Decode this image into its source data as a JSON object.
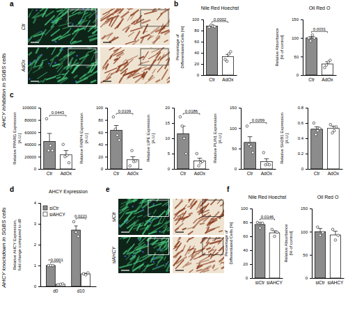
{
  "side_labels": [
    "AHCY inhibition in SGBS cells",
    "AHCY knockdown in SGBS cells"
  ],
  "panel_labels": [
    "a",
    "b",
    "c",
    "d",
    "e",
    "f"
  ],
  "image_labels": {
    "a": [
      "Ctr",
      "AdOx"
    ],
    "e": [
      "siCtr",
      "siAHCY"
    ]
  },
  "chart_data": [
    {
      "type": "bar",
      "title": "Nile Red Hoechst",
      "y_label": [
        "Percentage of",
        "Differentiated Cells [%]"
      ],
      "categories": [
        "Ctr",
        "AdOx"
      ],
      "values": [
        88,
        33
      ],
      "errors": [
        2,
        4
      ],
      "points": [
        [
          86,
          90,
          88,
          87
        ],
        [
          28,
          25,
          38,
          42
        ]
      ],
      "colors": [
        "#8c8c8c",
        "#ffffff"
      ],
      "ylim": [
        0,
        100
      ],
      "yticks": [
        0,
        20,
        40,
        60,
        80,
        100
      ],
      "p_values": [
        "0.0002"
      ]
    },
    {
      "type": "bar",
      "title": "Oil Red O",
      "y_label": [
        "Relative Absorbance",
        "[% of control]"
      ],
      "categories": [
        "Ctr",
        "AdOx"
      ],
      "values": [
        100,
        30
      ],
      "errors": [
        4,
        6
      ],
      "points": [
        [
          100,
          92,
          108,
          100
        ],
        [
          20,
          27,
          35,
          40
        ]
      ],
      "colors": [
        "#8c8c8c",
        "#ffffff"
      ],
      "ylim": [
        0,
        150
      ],
      "yticks": [
        0,
        50,
        100,
        150
      ],
      "p_values": [
        "0.0031"
      ]
    },
    {
      "type": "bar",
      "y_label": [
        "Relative PPARG Expression",
        "[A.U.]"
      ],
      "categories": [
        "Ctr",
        "AdOx"
      ],
      "values": [
        45000,
        23000
      ],
      "errors": [
        13000,
        7000
      ],
      "points": [
        [
          82000,
          30000,
          38000,
          30000
        ],
        [
          40000,
          20000,
          22000,
          10000
        ]
      ],
      "colors": [
        "#8c8c8c",
        "#ffffff"
      ],
      "ylim": [
        0,
        100000
      ],
      "yticks": [
        0,
        20000,
        40000,
        60000,
        80000,
        100000
      ],
      "p_values": [
        "0.0443"
      ]
    },
    {
      "type": "bar",
      "y_label": [
        "Relative FABP4 Expression",
        "[A.U.]"
      ],
      "categories": [
        "Ctr",
        "AdOx"
      ],
      "values": [
        63,
        15
      ],
      "errors": [
        8,
        5
      ],
      "points": [
        [
          85,
          65,
          55,
          47
        ],
        [
          5,
          30,
          12,
          13
        ]
      ],
      "colors": [
        "#8c8c8c",
        "#ffffff"
      ],
      "ylim": [
        0,
        100
      ],
      "yticks": [
        0,
        20,
        40,
        60,
        80,
        100
      ],
      "p_values": [
        "0.0109"
      ]
    },
    {
      "type": "bar",
      "y_label": [
        "Relative LIPE Expression",
        "[A.U.]"
      ],
      "categories": [
        "Ctr",
        "AdOx"
      ],
      "values": [
        11.5,
        2.6
      ],
      "errors": [
        2.5,
        0.9
      ],
      "points": [
        [
          17,
          14,
          10,
          5
        ],
        [
          5,
          1,
          2,
          2.5
        ]
      ],
      "colors": [
        "#8c8c8c",
        "#ffffff"
      ],
      "ylim": [
        0,
        20
      ],
      "yticks": [
        0,
        5,
        10,
        15,
        20
      ],
      "p_values": [
        "0.0186"
      ]
    },
    {
      "type": "bar",
      "y_label": [
        "Relative PLIN1 Expression",
        "[A.U.]"
      ],
      "categories": [
        "Ctr",
        "AdOx"
      ],
      "values": [
        65,
        18
      ],
      "errors": [
        14,
        7
      ],
      "points": [
        [
          105,
          60,
          55,
          40
        ],
        [
          40,
          10,
          12,
          10
        ]
      ],
      "colors": [
        "#8c8c8c",
        "#ffffff"
      ],
      "ylim": [
        0,
        150
      ],
      "yticks": [
        0,
        50,
        100,
        150
      ],
      "p_values": [
        "0.0269"
      ]
    },
    {
      "type": "bar",
      "y_label": [
        "Relative SH2B1 Expression",
        "[A.U.]"
      ],
      "categories": [
        "Ctr",
        "AdOx"
      ],
      "values": [
        0.52,
        0.53
      ],
      "errors": [
        0.03,
        0.03
      ],
      "points": [
        [
          0.6,
          0.45,
          0.5,
          0.53
        ],
        [
          0.58,
          0.47,
          0.5,
          0.55
        ]
      ],
      "colors": [
        "#8c8c8c",
        "#ffffff"
      ],
      "ylim": [
        0,
        0.8
      ],
      "yticks": [
        0,
        0.2,
        0.4,
        0.6,
        0.8
      ]
    },
    {
      "type": "bar",
      "title": "AHCY Expression",
      "y_label": [
        "Relative AHCY Expression,",
        "fold change compared to d0"
      ],
      "categories": [
        "d0",
        "d10"
      ],
      "series": [
        {
          "name": "siCtr",
          "color": "#8c8c8c",
          "values": [
            1,
            2.7
          ],
          "errors": [
            0,
            0.2
          ],
          "points": [
            [
              1,
              1,
              1
            ],
            [
              3.1,
              2.6,
              2.4
            ]
          ]
        },
        {
          "name": "siAHCY",
          "color": "#ffffff",
          "values": [
            0.1,
            0.6
          ],
          "errors": [
            0.01,
            0.03
          ],
          "points": [
            [
              0.08,
              0.1,
              0.12
            ],
            [
              0.6,
              0.55,
              0.65
            ]
          ]
        }
      ],
      "ylim": [
        0,
        4
      ],
      "yticks": [
        0,
        1,
        2,
        3,
        4
      ],
      "legend": "top-left",
      "p_values": [
        "<0.0001",
        "0.0221"
      ]
    },
    {
      "type": "bar",
      "title": "Nile Red Hoechst",
      "y_label": [
        "Percentage of",
        "Differentiated Cells [%]"
      ],
      "categories": [
        "siCtr",
        "siAHCY"
      ],
      "values": [
        77,
        65
      ],
      "errors": [
        3,
        3
      ],
      "points": [
        [
          80,
          72,
          79
        ],
        [
          70,
          60,
          66
        ]
      ],
      "colors": [
        "#8c8c8c",
        "#ffffff"
      ],
      "ylim": [
        0,
        100
      ],
      "yticks": [
        0,
        20,
        40,
        60,
        80,
        100
      ],
      "p_values": [
        "0.0146"
      ]
    },
    {
      "type": "bar",
      "title": "Oil Red O",
      "y_label": [
        "Relative Absorbance",
        "[% of control]"
      ],
      "categories": [
        "siCtr",
        "siAHCY"
      ],
      "values": [
        100,
        93
      ],
      "errors": [
        7,
        8
      ],
      "points": [
        [
          110,
          92,
          98
        ],
        [
          105,
          82,
          92
        ]
      ],
      "colors": [
        "#8c8c8c",
        "#ffffff"
      ],
      "ylim": [
        0,
        150
      ],
      "yticks": [
        0,
        50,
        100,
        150
      ]
    }
  ]
}
